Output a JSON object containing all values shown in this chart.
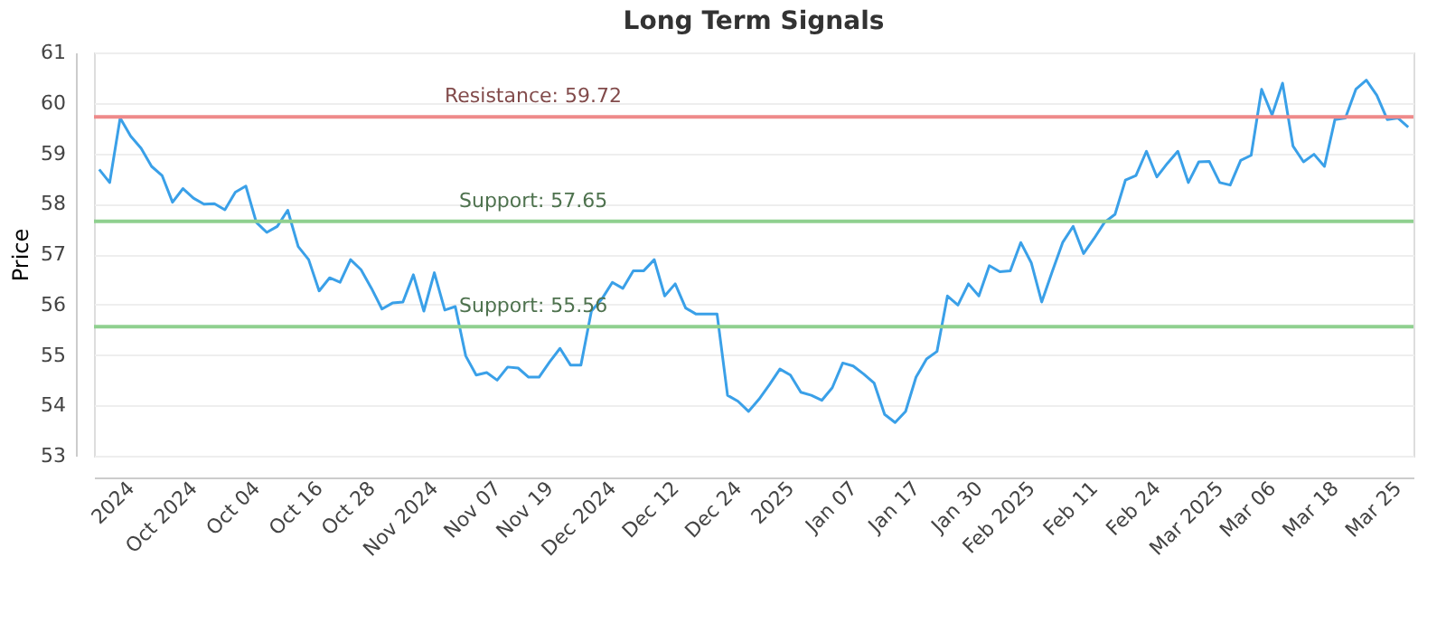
{
  "chart_data": {
    "type": "line",
    "title": "Long Term Signals",
    "ylabel": "Price",
    "categories": [
      null,
      null,
      null,
      "2024",
      null,
      null,
      null,
      null,
      null,
      "Oct 2024",
      null,
      null,
      null,
      null,
      null,
      "Oct 04",
      null,
      null,
      null,
      null,
      null,
      "Oct 16",
      null,
      null,
      null,
      null,
      "Oct 28",
      null,
      null,
      null,
      null,
      null,
      "Nov 2024",
      null,
      null,
      null,
      null,
      null,
      "Nov 07",
      null,
      null,
      null,
      null,
      "Nov 19",
      null,
      null,
      null,
      null,
      null,
      "Dec 2024",
      null,
      null,
      null,
      null,
      null,
      "Dec 12",
      null,
      null,
      null,
      null,
      null,
      "Dec 24",
      null,
      null,
      null,
      null,
      "2025",
      null,
      null,
      null,
      null,
      null,
      "Jan 07",
      null,
      null,
      null,
      null,
      null,
      "Jan 17",
      null,
      null,
      null,
      null,
      null,
      "Jan 30",
      null,
      null,
      null,
      null,
      "Feb 2025",
      null,
      null,
      null,
      null,
      null,
      "Feb 11",
      null,
      null,
      null,
      null,
      null,
      "Feb 24",
      null,
      null,
      null,
      null,
      null,
      "Mar 2025",
      null,
      null,
      null,
      null,
      "Mar 06",
      null,
      null,
      null,
      null,
      null,
      "Mar 18",
      null,
      null,
      null,
      null,
      null,
      "Mar 25",
      null
    ],
    "series": [
      {
        "color": "#3aa0e8",
        "values": [
          58.68,
          58.42,
          59.7,
          59.34,
          59.1,
          58.74,
          58.56,
          58.03,
          58.3,
          58.11,
          57.99,
          58.0,
          57.88,
          58.23,
          58.35,
          57.63,
          57.43,
          57.55,
          57.87,
          57.15,
          56.89,
          56.27,
          56.53,
          56.44,
          56.89,
          56.69,
          56.32,
          55.91,
          56.03,
          56.05,
          56.59,
          55.87,
          56.63,
          55.89,
          55.96,
          54.98,
          54.6,
          54.65,
          54.5,
          54.76,
          54.74,
          54.56,
          54.56,
          54.86,
          55.13,
          54.8,
          54.8,
          55.87,
          56.11,
          56.44,
          56.32,
          56.67,
          56.67,
          56.89,
          56.17,
          56.41,
          55.93,
          55.81,
          55.81,
          55.81,
          54.2,
          54.08,
          53.88,
          54.12,
          54.41,
          54.72,
          54.6,
          54.26,
          54.2,
          54.1,
          54.35,
          54.84,
          54.78,
          54.62,
          54.44,
          53.82,
          53.66,
          53.88,
          54.56,
          54.92,
          55.07,
          56.17,
          55.99,
          56.41,
          56.17,
          56.77,
          56.65,
          56.67,
          57.23,
          56.83,
          56.05,
          56.65,
          57.23,
          57.55,
          57.01,
          57.31,
          57.63,
          57.79,
          58.47,
          58.56,
          59.04,
          58.53,
          58.8,
          59.04,
          58.42,
          58.83,
          58.84,
          58.42,
          58.37,
          58.86,
          58.96,
          60.27,
          59.76,
          60.39,
          59.14,
          58.83,
          58.98,
          58.74,
          59.67,
          59.7,
          60.27,
          60.45,
          60.15,
          59.67,
          59.7,
          59.52
        ]
      }
    ],
    "ylim": [
      53,
      61
    ],
    "yticks": [
      53,
      54,
      55,
      56,
      57,
      58,
      59,
      60,
      61
    ],
    "grid": "y",
    "legend": false,
    "marker": "none",
    "line_style": "solid",
    "ref_lines": [
      {
        "axis": "y",
        "value": 59.72,
        "label": "Resistance: 59.72",
        "color": "#ee8a8a"
      },
      {
        "axis": "y",
        "value": 57.65,
        "label": "Support: 57.65",
        "color": "#8fd08f"
      },
      {
        "axis": "y",
        "value": 55.56,
        "label": "Support: 55.56",
        "color": "#8fd08f"
      }
    ]
  }
}
